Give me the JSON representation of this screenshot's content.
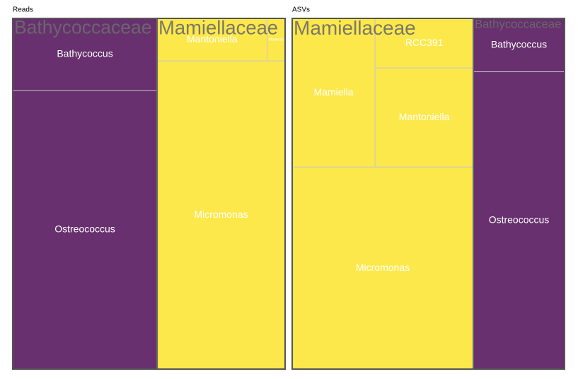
{
  "chart_data": [
    {
      "type": "treemap",
      "title": "Reads",
      "groups": [
        {
          "name": "Bathycoccaceae",
          "color": "#68306e",
          "children": [
            {
              "name": "Bathycoccus",
              "value": 10.9
            },
            {
              "name": "Ostreococcus",
              "value": 42.1
            }
          ]
        },
        {
          "name": "Mamiellaceae",
          "color": "#fde84c",
          "children": [
            {
              "name": "Mantoniella",
              "value": 4.9
            },
            {
              "name": "Mamiella",
              "value": 0.8
            },
            {
              "name": "Micromonas",
              "value": 41.3
            }
          ]
        }
      ]
    },
    {
      "type": "treemap",
      "title": "ASVs",
      "groups": [
        {
          "name": "Mamiellaceae",
          "color": "#fde84c",
          "children": [
            {
              "name": "Mamiella",
              "value": 12.9
            },
            {
              "name": "RCC391",
              "value": 5.1
            },
            {
              "name": "Mantoniella",
              "value": 10.2
            },
            {
              "name": "Micromonas",
              "value": 38.3
            }
          ]
        },
        {
          "name": "Bathycoccaceae",
          "color": "#68306e",
          "children": [
            {
              "name": "Bathycoccus",
              "value": 5.1
            },
            {
              "name": "Ostreococcus",
              "value": 28.4
            }
          ]
        }
      ]
    }
  ]
}
